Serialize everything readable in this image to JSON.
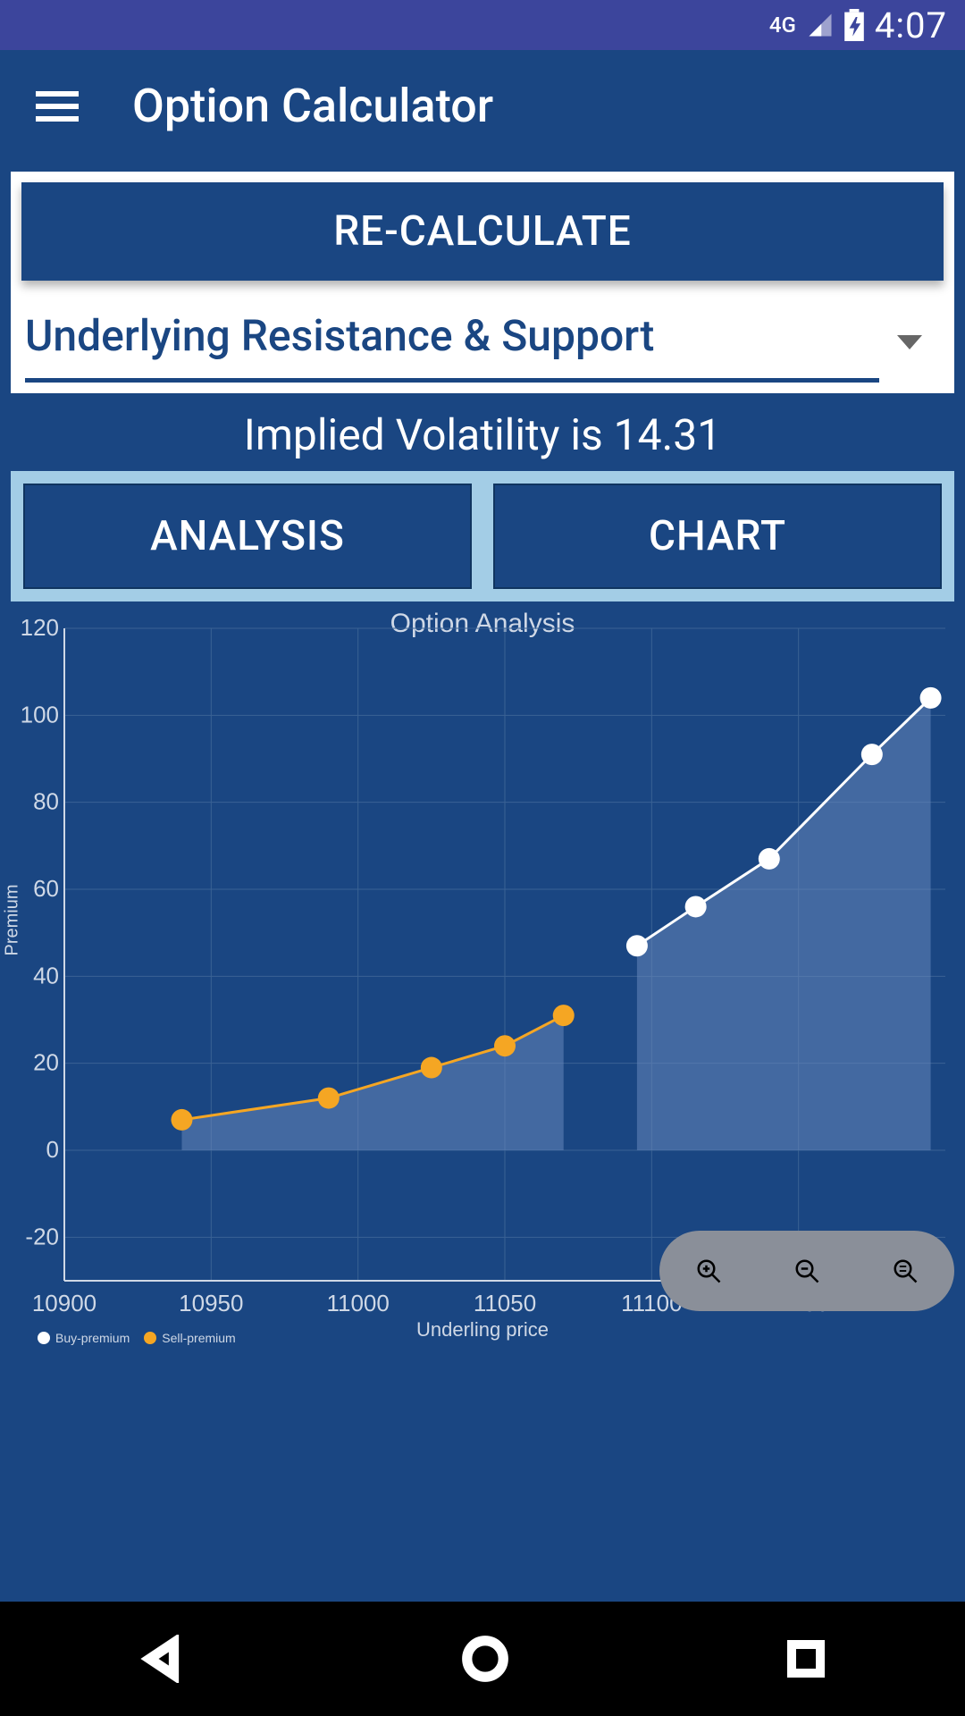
{
  "status_bar": {
    "network": "4G",
    "time": "4:07"
  },
  "app_bar": {
    "title": "Option Calculator"
  },
  "card": {
    "recalculate_label": "RE-CALCULATE",
    "dropdown_label": "Underlying Resistance & Support"
  },
  "iv_text": "Implied Volatility is 14.31",
  "tabs": {
    "analysis": "ANALYSIS",
    "chart": "CHART"
  },
  "chart": {
    "type": "line-area",
    "title": "Option Analysis",
    "y_label": "Premium",
    "x_label": "Underling price",
    "x_ticks": [
      10900,
      10950,
      11000,
      11050,
      11100,
      11150
    ],
    "y_ticks": [
      -20,
      0,
      20,
      40,
      60,
      80,
      100,
      120
    ],
    "ylim": [
      -30,
      120
    ],
    "xlim": [
      10900,
      11200
    ],
    "grid_color": "#3a6294",
    "axis_color": "#cfd8e6",
    "background_color": "#1a4682",
    "series": [
      {
        "name": "Sell-premium",
        "color": "#f5a623",
        "marker": "circle",
        "marker_size": 12,
        "line_width": 3,
        "fill_opacity": 0.5,
        "fill_color": "#6b8cbf",
        "x": [
          10940,
          10990,
          11025,
          11050,
          11070
        ],
        "y": [
          7,
          12,
          19,
          24,
          31
        ]
      },
      {
        "name": "Buy-premium",
        "color": "#ffffff",
        "marker": "circle",
        "marker_size": 12,
        "line_width": 3,
        "fill_opacity": 0.5,
        "fill_color": "#6b8cbf",
        "x": [
          11095,
          11115,
          11140,
          11175,
          11195
        ],
        "y": [
          47,
          56,
          67,
          91,
          104
        ]
      }
    ],
    "legend": [
      {
        "label": "Buy-premium",
        "color": "#ffffff"
      },
      {
        "label": "Sell-premium",
        "color": "#f5a623"
      }
    ]
  }
}
